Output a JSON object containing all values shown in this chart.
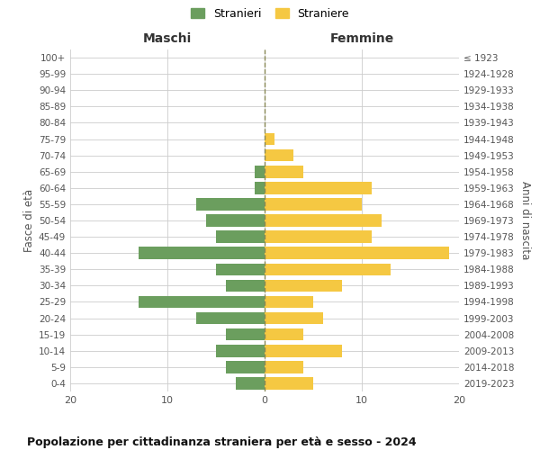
{
  "age_groups": [
    "0-4",
    "5-9",
    "10-14",
    "15-19",
    "20-24",
    "25-29",
    "30-34",
    "35-39",
    "40-44",
    "45-49",
    "50-54",
    "55-59",
    "60-64",
    "65-69",
    "70-74",
    "75-79",
    "80-84",
    "85-89",
    "90-94",
    "95-99",
    "100+"
  ],
  "birth_years": [
    "2019-2023",
    "2014-2018",
    "2009-2013",
    "2004-2008",
    "1999-2003",
    "1994-1998",
    "1989-1993",
    "1984-1988",
    "1979-1983",
    "1974-1978",
    "1969-1973",
    "1964-1968",
    "1959-1963",
    "1954-1958",
    "1949-1953",
    "1944-1948",
    "1939-1943",
    "1934-1938",
    "1929-1933",
    "1924-1928",
    "≤ 1923"
  ],
  "maschi": [
    3,
    4,
    5,
    4,
    7,
    13,
    4,
    5,
    13,
    5,
    6,
    7,
    1,
    1,
    0,
    0,
    0,
    0,
    0,
    0,
    0
  ],
  "femmine": [
    5,
    4,
    8,
    4,
    6,
    5,
    8,
    13,
    19,
    11,
    12,
    10,
    11,
    4,
    3,
    1,
    0,
    0,
    0,
    0,
    0
  ],
  "color_maschi": "#6b9e5e",
  "color_femmine": "#f5c842",
  "title": "Popolazione per cittadinanza straniera per età e sesso - 2024",
  "xlabel_left": "Maschi",
  "xlabel_right": "Femmine",
  "ylabel_left": "Fasce di età",
  "ylabel_right": "Anni di nascita",
  "legend_maschi": "Stranieri",
  "legend_femmine": "Straniere",
  "xlim": 20,
  "background_color": "#ffffff",
  "grid_color": "#cccccc",
  "dashed_line_color": "#888855"
}
